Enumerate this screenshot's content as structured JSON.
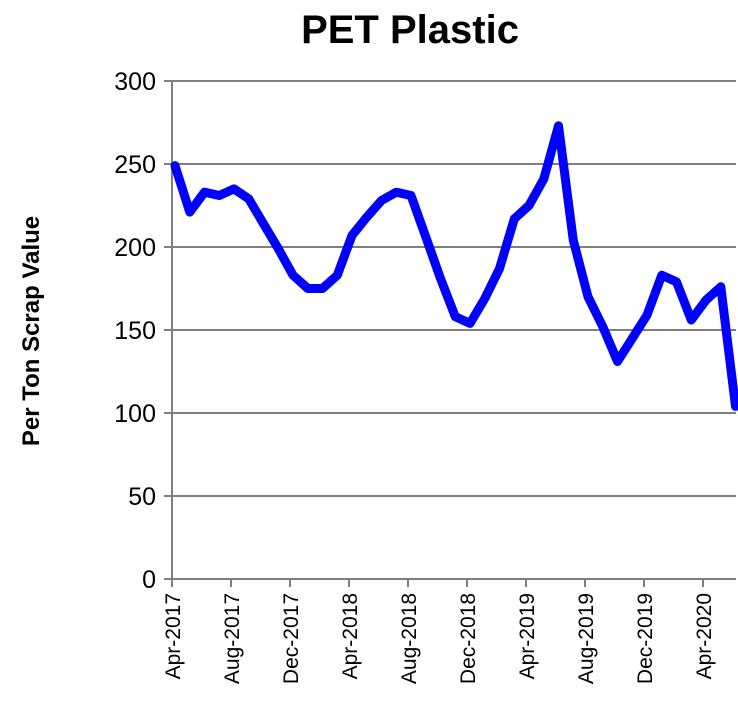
{
  "chart_data": {
    "type": "line",
    "title": "PET Plastic",
    "xlabel": "",
    "ylabel": "Per Ton Scrap Value",
    "ylim": [
      0,
      300
    ],
    "yticks": [
      0,
      50,
      100,
      150,
      200,
      250,
      300
    ],
    "grid": "horizontal",
    "legend": "none",
    "x": [
      "Apr-2017",
      "May-2017",
      "Jun-2017",
      "Jul-2017",
      "Aug-2017",
      "Sep-2017",
      "Oct-2017",
      "Nov-2017",
      "Dec-2017",
      "Jan-2018",
      "Feb-2018",
      "Mar-2018",
      "Apr-2018",
      "May-2018",
      "Jun-2018",
      "Jul-2018",
      "Aug-2018",
      "Sep-2018",
      "Oct-2018",
      "Nov-2018",
      "Dec-2018",
      "Jan-2019",
      "Feb-2019",
      "Mar-2019",
      "Apr-2019",
      "May-2019",
      "Jun-2019",
      "Jul-2019",
      "Aug-2019",
      "Sep-2019",
      "Oct-2019",
      "Nov-2019",
      "Dec-2019",
      "Jan-2020",
      "Feb-2020",
      "Mar-2020",
      "Apr-2020",
      "May-2020",
      "Jun-2020"
    ],
    "xtick_labels": [
      "Apr-2017",
      "Aug-2017",
      "Dec-2017",
      "Apr-2018",
      "Aug-2018",
      "Dec-2018",
      "Apr-2019",
      "Aug-2019",
      "Dec-2019",
      "Apr-2020"
    ],
    "series": [
      {
        "color": "#0000ff",
        "values": [
          249,
          221,
          233,
          231,
          235,
          229,
          214,
          199,
          183,
          175,
          175,
          183,
          207,
          218,
          228,
          233,
          231,
          206,
          181,
          158,
          154,
          169,
          187,
          217,
          225,
          241,
          273,
          204,
          170,
          152,
          131,
          145,
          159,
          183,
          179,
          156,
          168,
          176,
          104
        ]
      }
    ]
  }
}
